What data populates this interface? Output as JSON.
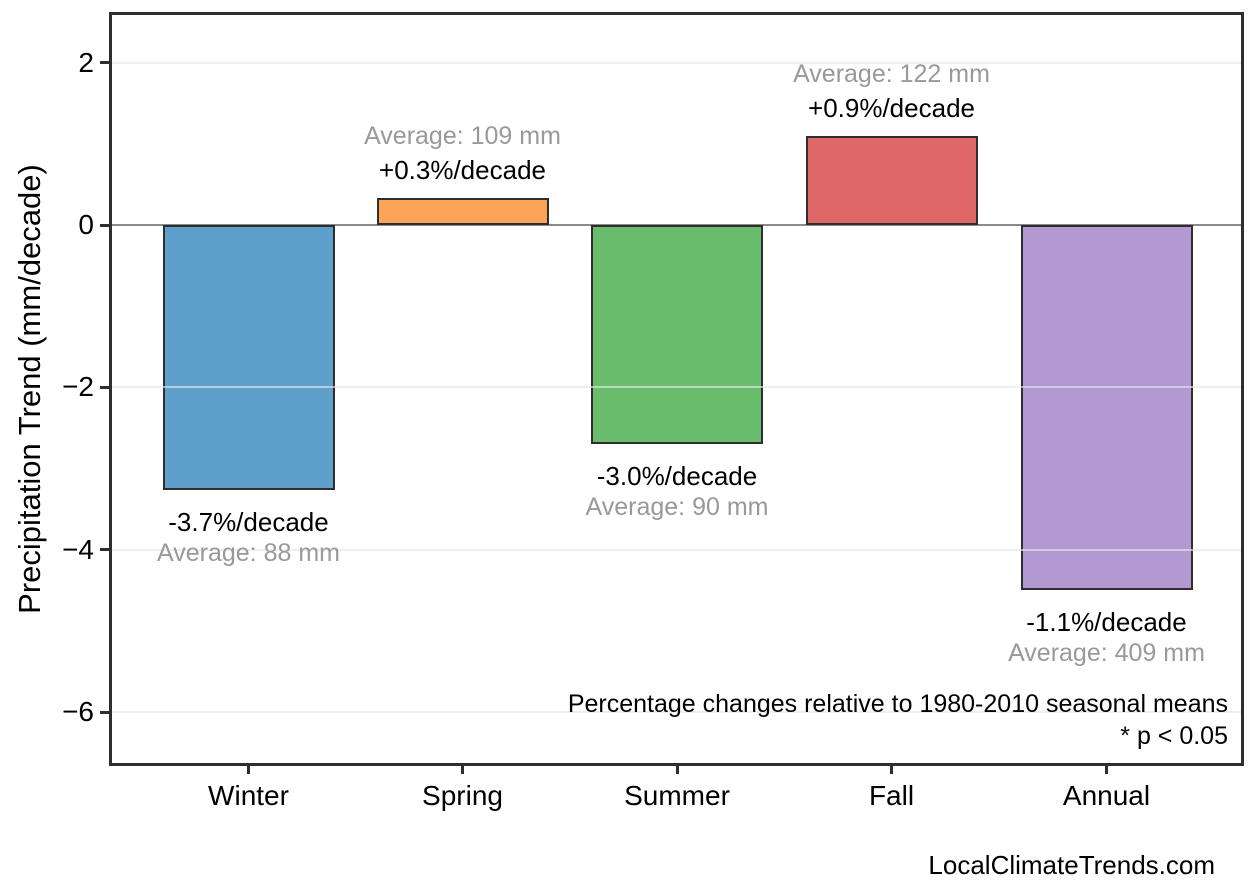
{
  "chart_data": {
    "type": "bar",
    "title": "",
    "ylabel": "Precipitation Trend (mm/decade)",
    "xlabel": "",
    "categories": [
      "Winter",
      "Spring",
      "Summer",
      "Fall",
      "Annual"
    ],
    "series": [
      {
        "name": "Precipitation trend (mm/decade)",
        "values": [
          -3.26,
          0.33,
          -2.7,
          1.1,
          -4.5
        ]
      }
    ],
    "bars": [
      {
        "category": "Winter",
        "trend_mm_per_decade": -3.26,
        "pct_per_decade": -3.7,
        "average_mm": 88,
        "pct_label": "-3.7%/decade",
        "avg_label": "Average: 88 mm",
        "color": "#5E9FCB"
      },
      {
        "category": "Spring",
        "trend_mm_per_decade": 0.33,
        "pct_per_decade": 0.3,
        "average_mm": 109,
        "pct_label": "+0.3%/decade",
        "avg_label": "Average: 109 mm",
        "color": "#FBA457"
      },
      {
        "category": "Summer",
        "trend_mm_per_decade": -2.7,
        "pct_per_decade": -3.0,
        "average_mm": 90,
        "pct_label": "-3.0%/decade",
        "avg_label": "Average: 90 mm",
        "color": "#69BC6C"
      },
      {
        "category": "Fall",
        "trend_mm_per_decade": 1.1,
        "pct_per_decade": 0.9,
        "average_mm": 122,
        "pct_label": "+0.9%/decade",
        "avg_label": "Average: 122 mm",
        "color": "#DF6767"
      },
      {
        "category": "Annual",
        "trend_mm_per_decade": -4.5,
        "pct_per_decade": -1.1,
        "average_mm": 409,
        "pct_label": "-1.1%/decade",
        "avg_label": "Average: 409 mm",
        "color": "#B399D2"
      }
    ],
    "yticks": [
      {
        "value": 2,
        "label": "2"
      },
      {
        "value": 0,
        "label": "0"
      },
      {
        "value": -2,
        "label": "−2"
      },
      {
        "value": -4,
        "label": "−4"
      },
      {
        "value": -6,
        "label": "−6"
      }
    ],
    "ylim": [
      -6.7,
      2.6
    ],
    "baseline": 0,
    "grid": "horizontal-major-only",
    "legend": "none",
    "annotations": [
      "Percentage changes relative to 1980-2010 seasonal means",
      "* p < 0.05"
    ]
  },
  "watermark": "LocalClimateTrends.com"
}
